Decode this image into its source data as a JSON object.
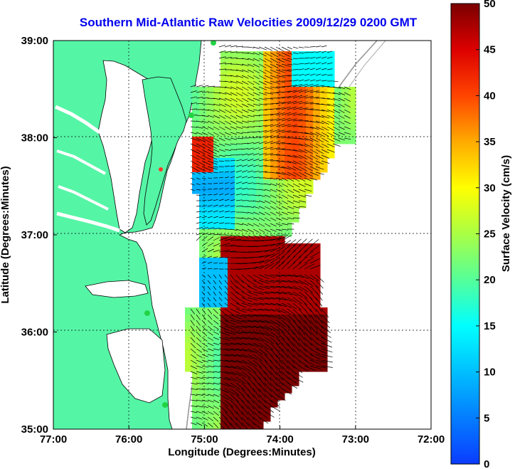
{
  "title": "Southern Mid-Atlantic Raw Velocities 2009/12/29 0200 GMT",
  "axes": {
    "xlabel": "Longitude (Degrees:Minutes)",
    "ylabel": "Latitude (Degrees:Minutes)",
    "x_ticks": [
      "77:00",
      "76:00",
      "75:00",
      "74:00",
      "73:00",
      "72:00"
    ],
    "y_ticks": [
      "39:00",
      "38:00",
      "37:00",
      "36:00",
      "35:00"
    ],
    "x_range": [
      -77,
      -72
    ],
    "y_range": [
      35,
      39
    ]
  },
  "colorbar": {
    "label": "Surface Velocity (cm/s)",
    "ticks": [
      "50",
      "45",
      "40",
      "35",
      "30",
      "25",
      "20",
      "15",
      "10",
      "5",
      "0"
    ],
    "range": [
      0,
      50
    ]
  },
  "colors": {
    "land": "#55f5a6",
    "title": "#0000ee",
    "station": "#22d444",
    "station_highlight": "#ff3a2a"
  }
}
